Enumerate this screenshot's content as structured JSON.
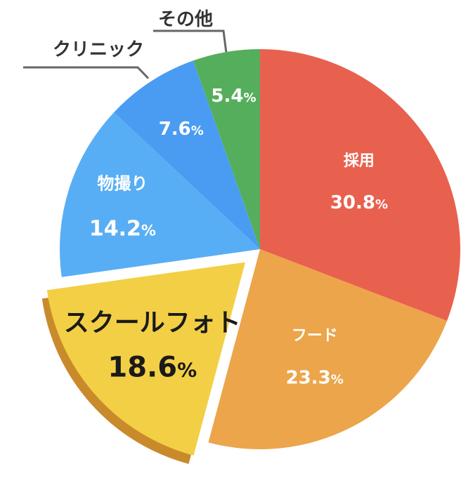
{
  "chart_data": {
    "type": "pie",
    "start_angle_deg": 0,
    "direction": "clockwise",
    "slices": [
      {
        "label": "採用",
        "value": 30.8,
        "value_text": "30.8",
        "color": "#E8614F",
        "label_placement": "inside",
        "text_color": "#ffffff",
        "exploded": false
      },
      {
        "label": "フード",
        "value": 23.3,
        "value_text": "23.3",
        "color": "#ECA54A",
        "label_placement": "inside",
        "text_color": "#ffffff",
        "exploded": false
      },
      {
        "label": "スクールフォト",
        "value": 18.6,
        "value_text": "18.6",
        "color": "#F3CF45",
        "shadow_color": "#C98A2C",
        "label_placement": "inside",
        "text_color": "#1a1a1a",
        "exploded": true
      },
      {
        "label": "物撮り",
        "value": 14.2,
        "value_text": "14.2",
        "color": "#58AEF4",
        "label_placement": "inside",
        "text_color": "#ffffff",
        "exploded": false
      },
      {
        "label": "クリニック",
        "value": 7.6,
        "value_text": "7.6",
        "color": "#4A9CF2",
        "label_placement": "outside",
        "text_color": "#ffffff",
        "exploded": false
      },
      {
        "label": "その他",
        "value": 5.4,
        "value_text": "5.4",
        "color": "#55AE5C",
        "label_placement": "outside",
        "text_color": "#ffffff",
        "exploded": false
      }
    ],
    "unit": "%",
    "leader_line_color": "#666666"
  }
}
